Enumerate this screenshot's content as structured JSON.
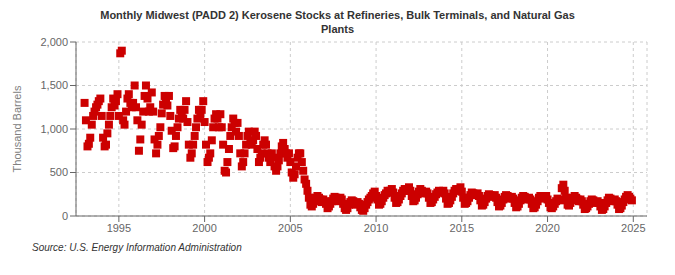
{
  "chart_data": {
    "type": "scatter",
    "title": "Monthly Midwest (PADD 2) Kerosene Stocks at Refineries, Bulk Terminals, and Natural Gas\nPlants",
    "y_label": "Thousand Barrels",
    "annotations": [
      "Source: U.S. Energy Information Administration"
    ],
    "color": "#cc0000",
    "marker": "square",
    "grid": true,
    "xlim": [
      1992.5,
      2025.8
    ],
    "xticks": [
      1995,
      2000,
      2005,
      2010,
      2015,
      2020,
      2025
    ],
    "ylim": [
      0,
      2000
    ],
    "yticks": [
      0,
      500,
      {
        "value": 1000,
        "label": "1,000"
      },
      {
        "value": 1500,
        "label": "1,500"
      },
      {
        "value": 2000,
        "label": "2,000"
      }
    ],
    "x": [
      1993.0,
      1993.08,
      1993.17,
      1993.25,
      1993.33,
      1993.42,
      1993.5,
      1993.58,
      1993.67,
      1993.75,
      1993.83,
      1993.92,
      1994.0,
      1994.08,
      1994.17,
      1994.25,
      1994.33,
      1994.42,
      1994.5,
      1994.58,
      1994.67,
      1994.75,
      1994.83,
      1994.92,
      1995.0,
      1995.08,
      1995.17,
      1995.25,
      1995.33,
      1995.42,
      1995.5,
      1995.58,
      1995.67,
      1995.75,
      1995.83,
      1995.92,
      1996.0,
      1996.08,
      1996.17,
      1996.25,
      1996.33,
      1996.42,
      1996.5,
      1996.58,
      1996.67,
      1996.75,
      1996.83,
      1996.92,
      1997.0,
      1997.08,
      1997.17,
      1997.25,
      1997.33,
      1997.42,
      1997.5,
      1997.58,
      1997.67,
      1997.75,
      1997.83,
      1997.92,
      1998.0,
      1998.08,
      1998.17,
      1998.25,
      1998.33,
      1998.42,
      1998.5,
      1998.58,
      1998.67,
      1998.75,
      1998.83,
      1998.92,
      1999.0,
      1999.08,
      1999.17,
      1999.25,
      1999.33,
      1999.42,
      1999.5,
      1999.58,
      1999.67,
      1999.75,
      1999.83,
      1999.92,
      2000.0,
      2000.08,
      2000.17,
      2000.25,
      2000.33,
      2000.42,
      2000.5,
      2000.58,
      2000.67,
      2000.75,
      2000.83,
      2000.92,
      2001.0,
      2001.08,
      2001.17,
      2001.25,
      2001.33,
      2001.42,
      2001.5,
      2001.58,
      2001.67,
      2001.75,
      2001.83,
      2001.92,
      2002.0,
      2002.08,
      2002.17,
      2002.25,
      2002.33,
      2002.42,
      2002.5,
      2002.58,
      2002.67,
      2002.75,
      2002.83,
      2002.92,
      2003.0,
      2003.08,
      2003.17,
      2003.25,
      2003.33,
      2003.42,
      2003.5,
      2003.58,
      2003.67,
      2003.75,
      2003.83,
      2003.92,
      2004.0,
      2004.08,
      2004.17,
      2004.25,
      2004.33,
      2004.42,
      2004.5,
      2004.58,
      2004.67,
      2004.75,
      2004.83,
      2004.92,
      2005.0,
      2005.08,
      2005.17,
      2005.25,
      2005.33,
      2005.42,
      2005.5,
      2005.58,
      2005.67,
      2005.75,
      2005.83,
      2005.92,
      2006.0,
      2006.08,
      2006.17,
      2006.25,
      2006.33,
      2006.42,
      2006.5,
      2006.58,
      2006.67,
      2006.75,
      2006.83,
      2006.92,
      2007.0,
      2007.08,
      2007.17,
      2007.25,
      2007.33,
      2007.42,
      2007.5,
      2007.58,
      2007.67,
      2007.75,
      2007.83,
      2007.92,
      2008.0,
      2008.08,
      2008.17,
      2008.25,
      2008.33,
      2008.42,
      2008.5,
      2008.58,
      2008.67,
      2008.75,
      2008.83,
      2008.92,
      2009.0,
      2009.08,
      2009.17,
      2009.25,
      2009.33,
      2009.42,
      2009.5,
      2009.58,
      2009.67,
      2009.75,
      2009.83,
      2009.92,
      2010.0,
      2010.08,
      2010.17,
      2010.25,
      2010.33,
      2010.42,
      2010.5,
      2010.58,
      2010.67,
      2010.75,
      2010.83,
      2010.92,
      2011.0,
      2011.08,
      2011.17,
      2011.25,
      2011.33,
      2011.42,
      2011.5,
      2011.58,
      2011.67,
      2011.75,
      2011.83,
      2011.92,
      2012.0,
      2012.08,
      2012.17,
      2012.25,
      2012.33,
      2012.42,
      2012.5,
      2012.58,
      2012.67,
      2012.75,
      2012.83,
      2012.92,
      2013.0,
      2013.08,
      2013.17,
      2013.25,
      2013.33,
      2013.42,
      2013.5,
      2013.58,
      2013.67,
      2013.75,
      2013.83,
      2013.92,
      2014.0,
      2014.08,
      2014.17,
      2014.25,
      2014.33,
      2014.42,
      2014.5,
      2014.58,
      2014.67,
      2014.75,
      2014.83,
      2014.92,
      2015.0,
      2015.08,
      2015.17,
      2015.25,
      2015.33,
      2015.42,
      2015.5,
      2015.58,
      2015.67,
      2015.75,
      2015.83,
      2015.92,
      2016.0,
      2016.08,
      2016.17,
      2016.25,
      2016.33,
      2016.42,
      2016.5,
      2016.58,
      2016.67,
      2016.75,
      2016.83,
      2016.92,
      2017.0,
      2017.08,
      2017.17,
      2017.25,
      2017.33,
      2017.42,
      2017.5,
      2017.58,
      2017.67,
      2017.75,
      2017.83,
      2017.92,
      2018.0,
      2018.08,
      2018.17,
      2018.25,
      2018.33,
      2018.42,
      2018.5,
      2018.58,
      2018.67,
      2018.75,
      2018.83,
      2018.92,
      2019.0,
      2019.08,
      2019.17,
      2019.25,
      2019.33,
      2019.42,
      2019.5,
      2019.58,
      2019.67,
      2019.75,
      2019.83,
      2019.92,
      2020.0,
      2020.08,
      2020.17,
      2020.25,
      2020.33,
      2020.42,
      2020.5,
      2020.58,
      2020.67,
      2020.75,
      2020.83,
      2020.92,
      2021.0,
      2021.08,
      2021.17,
      2021.25,
      2021.33,
      2021.42,
      2021.5,
      2021.58,
      2021.67,
      2021.75,
      2021.83,
      2021.92,
      2022.0,
      2022.08,
      2022.17,
      2022.25,
      2022.33,
      2022.42,
      2022.5,
      2022.58,
      2022.67,
      2022.75,
      2022.83,
      2022.92,
      2023.0,
      2023.08,
      2023.17,
      2023.25,
      2023.33,
      2023.42,
      2023.5,
      2023.58,
      2023.67,
      2023.75,
      2023.83,
      2023.92,
      2024.0,
      2024.08,
      2024.17,
      2024.25,
      2024.33,
      2024.42,
      2024.5,
      2024.58,
      2024.67,
      2024.75,
      2024.83,
      2024.92
    ],
    "values": [
      1300,
      1100,
      800,
      830,
      900,
      1050,
      1150,
      1200,
      1250,
      1280,
      1320,
      1350,
      1150,
      900,
      800,
      820,
      950,
      1050,
      1150,
      1250,
      1350,
      1270,
      1320,
      1400,
      1150,
      1870,
      1900,
      1100,
      1050,
      1200,
      1350,
      1400,
      1300,
      1250,
      1300,
      1500,
      1250,
      1100,
      750,
      880,
      1050,
      1200,
      1380,
      1500,
      1350,
      1200,
      1250,
      1420,
      1200,
      880,
      720,
      820,
      920,
      1020,
      1180,
      1280,
      1380,
      1320,
      1270,
      1380,
      1150,
      980,
      780,
      800,
      920,
      1020,
      1120,
      1220,
      1180,
      1120,
      1220,
      1320,
      1080,
      820,
      670,
      720,
      820,
      920,
      1020,
      1120,
      1220,
      1170,
      1220,
      1320,
      1080,
      820,
      620,
      670,
      720,
      870,
      1020,
      1120,
      1170,
      1120,
      1020,
      1170,
      1020,
      820,
      520,
      500,
      620,
      770,
      920,
      1020,
      1120,
      1070,
      970,
      1070,
      920,
      720,
      570,
      620,
      720,
      820,
      920,
      970,
      870,
      820,
      870,
      970,
      920,
      770,
      620,
      670,
      720,
      820,
      870,
      820,
      720,
      670,
      620,
      720,
      670,
      570,
      520,
      570,
      640,
      720,
      800,
      840,
      770,
      720,
      670,
      720,
      620,
      500,
      440,
      480,
      570,
      670,
      720,
      720,
      620,
      520,
      420,
      370,
      290,
      210,
      130,
      110,
      140,
      170,
      210,
      230,
      210,
      190,
      160,
      190,
      170,
      140,
      90,
      110,
      140,
      170,
      200,
      220,
      210,
      190,
      170,
      210,
      190,
      140,
      90,
      70,
      90,
      130,
      160,
      180,
      170,
      150,
      130,
      160,
      140,
      100,
      70,
      60,
      90,
      130,
      160,
      190,
      210,
      230,
      260,
      280,
      230,
      190,
      130,
      140,
      170,
      210,
      240,
      260,
      290,
      270,
      290,
      310,
      270,
      210,
      150,
      160,
      190,
      230,
      260,
      290,
      310,
      290,
      310,
      330,
      290,
      230,
      170,
      180,
      210,
      250,
      280,
      310,
      290,
      270,
      260,
      280,
      260,
      210,
      150,
      160,
      190,
      220,
      250,
      270,
      290,
      280,
      270,
      290,
      260,
      200,
      140,
      150,
      180,
      220,
      260,
      290,
      310,
      290,
      310,
      330,
      280,
      210,
      140,
      150,
      170,
      210,
      240,
      270,
      260,
      250,
      240,
      260,
      230,
      180,
      120,
      130,
      160,
      200,
      230,
      250,
      240,
      230,
      220,
      240,
      210,
      160,
      110,
      120,
      150,
      190,
      220,
      240,
      230,
      210,
      200,
      220,
      200,
      150,
      100,
      110,
      140,
      180,
      210,
      230,
      220,
      200,
      190,
      210,
      190,
      140,
      90,
      100,
      130,
      170,
      210,
      230,
      220,
      200,
      210,
      230,
      190,
      150,
      100,
      90,
      110,
      140,
      170,
      200,
      190,
      180,
      320,
      360,
      290,
      210,
      130,
      120,
      150,
      180,
      210,
      230,
      210,
      190,
      170,
      190,
      170,
      130,
      80,
      90,
      110,
      140,
      170,
      190,
      180,
      160,
      150,
      170,
      150,
      110,
      70,
      80,
      110,
      150,
      180,
      210,
      200,
      180,
      170,
      190,
      170,
      130,
      80,
      90,
      120,
      160,
      190,
      220,
      240,
      220,
      200,
      180
    ]
  }
}
